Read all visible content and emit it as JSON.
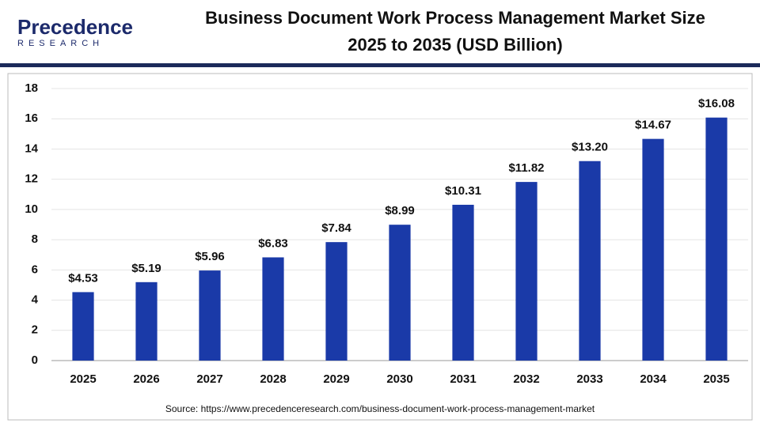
{
  "chart_data": {
    "type": "bar",
    "logo": "Precedence",
    "logo_sub": "RESEARCH",
    "title": "Business Document Work Process Management Market Size",
    "subtitle": "2025 to 2035 (USD Billion)",
    "categories": [
      "2025",
      "2026",
      "2027",
      "2028",
      "2029",
      "2030",
      "2031",
      "2032",
      "2033",
      "2034",
      "2035"
    ],
    "values": [
      4.53,
      5.19,
      5.96,
      6.83,
      7.84,
      8.99,
      10.31,
      11.82,
      13.2,
      14.67,
      16.08
    ],
    "value_labels": [
      "$4.53",
      "$5.19",
      "$5.96",
      "$6.83",
      "$7.84",
      "$8.99",
      "$10.31",
      "$11.82",
      "$13.20",
      "$14.67",
      "$16.08"
    ],
    "color": "#1a3aa8",
    "ylim": [
      0,
      18
    ],
    "yticks": [
      0,
      2,
      4,
      6,
      8,
      10,
      12,
      14,
      16,
      18
    ],
    "grid": true,
    "source": "Source: https://www.precedenceresearch.com/business-document-work-process-management-market"
  }
}
